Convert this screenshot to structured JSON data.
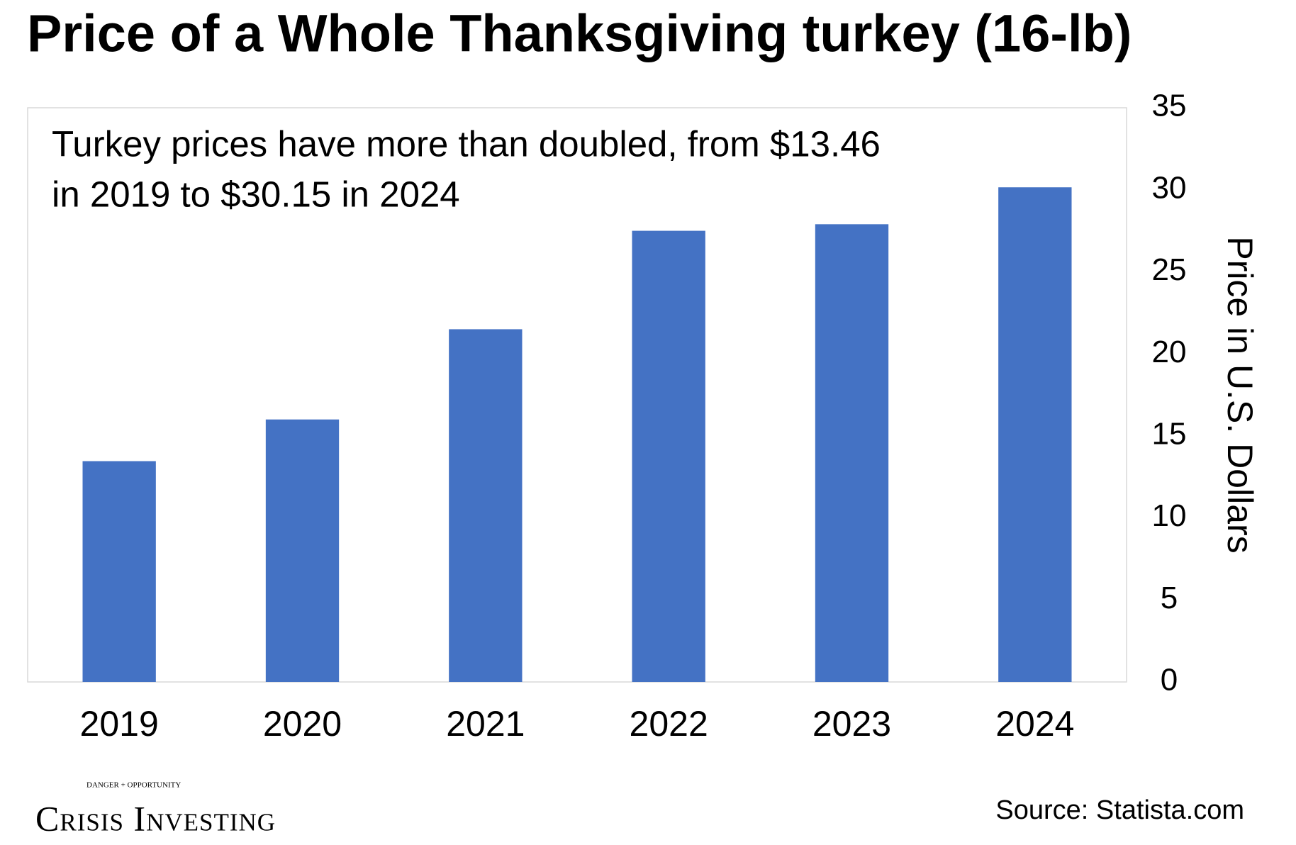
{
  "chart_data": {
    "type": "bar",
    "title": "Price of a Whole Thanksgiving turkey (16-lb)",
    "annotation": [
      "Turkey prices have more than doubled, from $13.46",
      "in 2019 to $30.15 in 2024"
    ],
    "categories": [
      "2019",
      "2020",
      "2021",
      "2022",
      "2023",
      "2024"
    ],
    "values": [
      13.46,
      16.0,
      21.5,
      27.5,
      27.9,
      30.15
    ],
    "color": "#4472c4",
    "y_label": "Price in U.S. Dollars",
    "y_axis_side": "right",
    "ylim": [
      0,
      35
    ],
    "yticks": [
      0,
      5,
      10,
      15,
      20,
      25,
      30,
      35
    ],
    "grid": false,
    "source": "Source: Statista.com"
  },
  "logo": {
    "name": "Crisis Investing",
    "tagline": "DANGER + OPPORTUNITY"
  }
}
